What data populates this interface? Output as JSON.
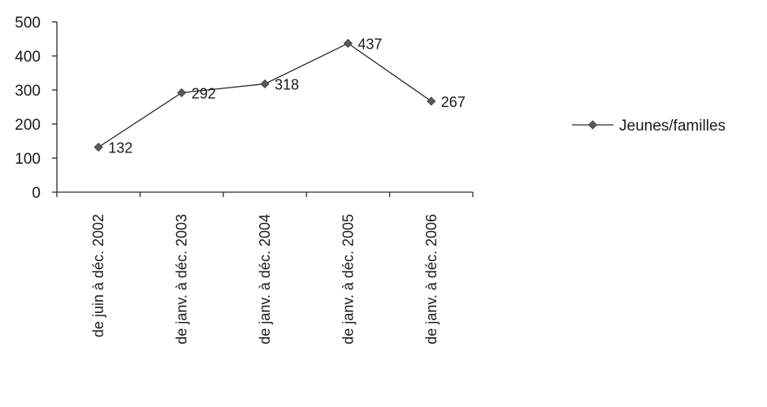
{
  "chart_data": {
    "type": "line",
    "categories": [
      "de juin à déc. 2002",
      "de janv. à déc. 2003",
      "de janv. à déc. 2004",
      "de janv. à déc. 2005",
      "de janv. à déc. 2006"
    ],
    "series": [
      {
        "name": "Jeunes/familles",
        "values": [
          132,
          292,
          318,
          437,
          267
        ]
      }
    ],
    "data_labels": [
      "132",
      "292",
      "318",
      "437",
      "267"
    ],
    "ylim": [
      0,
      500
    ],
    "yticks": [
      "0",
      "100",
      "200",
      "300",
      "400",
      "500"
    ],
    "title": "",
    "xlabel": "",
    "ylabel": "",
    "grid": false,
    "legend_position": "right",
    "colors": {
      "line": "#2a2a2a",
      "marker": "#5a5a5a"
    }
  }
}
